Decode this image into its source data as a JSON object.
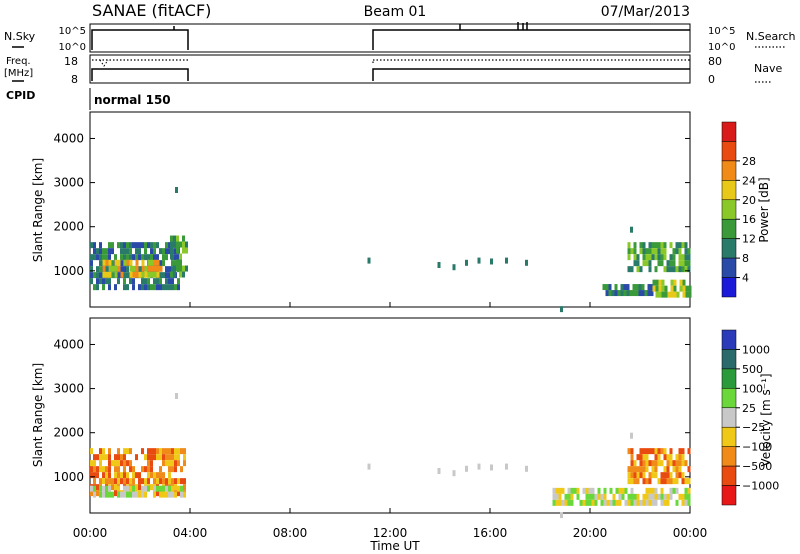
{
  "header": {
    "title": "SANAE (fitACF)",
    "beam": "Beam 01",
    "date": "07/Mar/2013"
  },
  "noise_panel": {
    "left_label": "N.Sky",
    "left_ticks": [
      "10^5",
      "10^0"
    ],
    "right_ticks": [
      "10^5",
      "10^0"
    ],
    "right_label": "N.Search"
  },
  "freq_panel": {
    "left_label_line1": "Freq.",
    "left_label_line2": "[MHz]",
    "left_ticks": [
      "18",
      "8"
    ],
    "right_ticks": [
      "80",
      "0"
    ],
    "right_label": "Nave"
  },
  "cpid_panel": {
    "label": "CPID",
    "program": "normal 150"
  },
  "x_axis": {
    "label": "Time UT",
    "ticks": [
      "00:00",
      "04:00",
      "08:00",
      "12:00",
      "16:00",
      "20:00",
      "00:00"
    ]
  },
  "chart_data": [
    {
      "type": "heatmap",
      "name": "power",
      "ylabel": "Slant Range [km]",
      "yticks": [
        "1000",
        "2000",
        "3000",
        "4000"
      ],
      "ylim": [
        180,
        4600
      ],
      "xlim_hours": [
        0,
        24
      ],
      "colorbar": {
        "label": "Power [dB]",
        "ticks": [
          "4",
          "8",
          "12",
          "16",
          "20",
          "24",
          "28"
        ],
        "colors": [
          "#1a1ad8",
          "#2a4aa8",
          "#2a7a6a",
          "#3a9a3a",
          "#8ac82a",
          "#e8c818",
          "#f08a18",
          "#e84a10",
          "#d81a1a"
        ]
      },
      "regions": [
        {
          "t": [
            0,
            3.6
          ],
          "r": [
            580,
            1650
          ],
          "level": 8
        },
        {
          "t": [
            0.5,
            2.8
          ],
          "r": [
            850,
            1250
          ],
          "level": 18
        },
        {
          "t": [
            3.2,
            3.9
          ],
          "r": [
            900,
            1800
          ],
          "level": 12
        },
        {
          "t": [
            21.5,
            24
          ],
          "r": [
            1000,
            1650
          ],
          "level": 10
        },
        {
          "t": [
            20.5,
            22.5
          ],
          "r": [
            450,
            700
          ],
          "level": 6
        },
        {
          "t": [
            22.5,
            24
          ],
          "r": [
            500,
            800
          ],
          "level": 14
        }
      ]
    },
    {
      "type": "heatmap",
      "name": "velocity",
      "ylabel": "Slant Range [km]",
      "yticks": [
        "1000",
        "2000",
        "3000",
        "4000"
      ],
      "ylim": [
        180,
        4600
      ],
      "xlim_hours": [
        0,
        24
      ],
      "colorbar": {
        "label": "Velocity [m s⁻¹]",
        "ticks": [
          "1000",
          "500",
          "100",
          "25",
          "−25",
          "−100",
          "−500",
          "−1000"
        ],
        "colors": [
          "#2a3ab8",
          "#2a6a6a",
          "#2a9a3a",
          "#6ad83a",
          "#c8c8c8",
          "#f0c818",
          "#f08a18",
          "#e84a10",
          "#e81818"
        ]
      },
      "regions": [
        {
          "t": [
            0,
            3.8
          ],
          "r": [
            580,
            1650
          ],
          "velocity": -100
        },
        {
          "t": [
            0,
            3.8
          ],
          "r": [
            580,
            800
          ],
          "velocity": 0
        },
        {
          "t": [
            21.5,
            24
          ],
          "r": [
            950,
            1650
          ],
          "velocity": -100
        },
        {
          "t": [
            18.5,
            24
          ],
          "r": [
            450,
            750
          ],
          "velocity": 0
        }
      ]
    }
  ]
}
